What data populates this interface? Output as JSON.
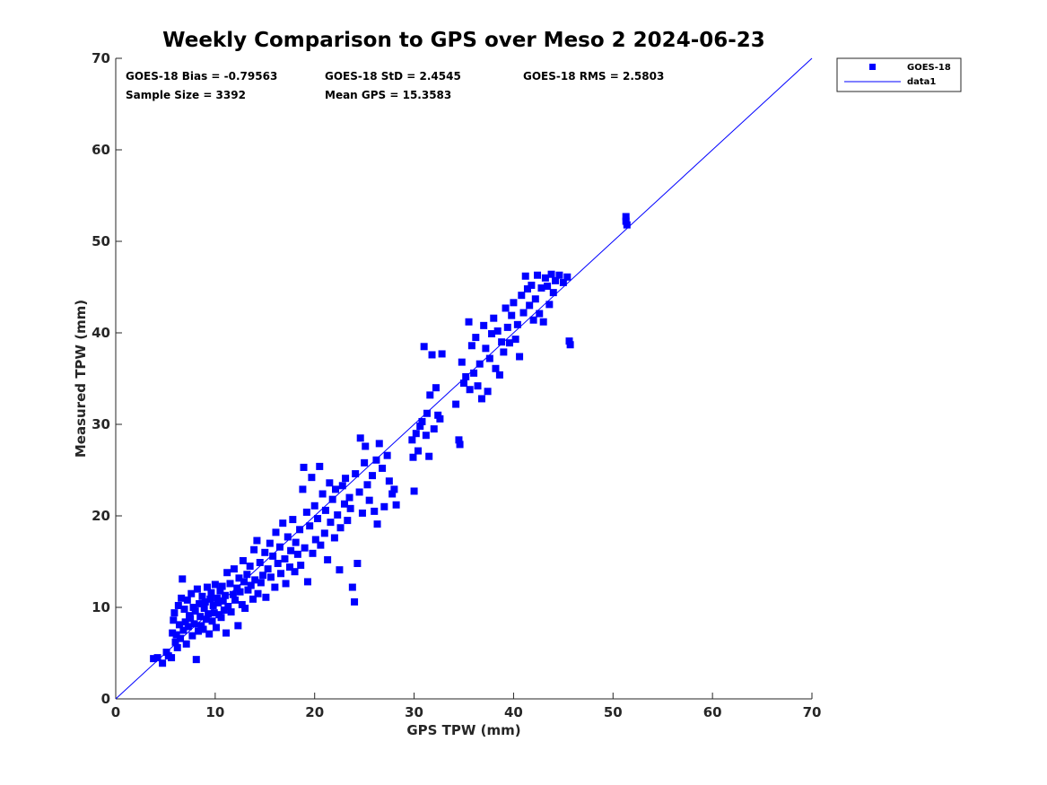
{
  "chart_data": {
    "type": "scatter",
    "title": "Weekly Comparison to GPS over Meso 2 2024-06-23",
    "xlabel": "GPS TPW (mm)",
    "ylabel": "Measured TPW (mm)",
    "xlim": [
      0,
      70
    ],
    "ylim": [
      0,
      70
    ],
    "xticks": [
      "0",
      "10",
      "20",
      "30",
      "40",
      "50",
      "60",
      "70"
    ],
    "yticks": [
      "0",
      "10",
      "20",
      "30",
      "40",
      "50",
      "60",
      "70"
    ],
    "grid": false,
    "legend_position": "outside-top-right",
    "stats": {
      "bias": "GOES-18 Bias = -0.79563",
      "std": "GOES-18 StD = 2.4545",
      "rms": "GOES-18 RMS = 2.5803",
      "sample_size": "Sample Size = 3392",
      "mean_gps": "Mean GPS = 15.3583"
    },
    "series": [
      {
        "name": "GOES-18",
        "kind": "scatter",
        "marker": "square",
        "color": "#0000ff",
        "points": [
          [
            3.8,
            4.4
          ],
          [
            4.2,
            4.5
          ],
          [
            4.7,
            3.9
          ],
          [
            5.1,
            5.1
          ],
          [
            5.3,
            4.7
          ],
          [
            5.6,
            4.5
          ],
          [
            5.7,
            7.2
          ],
          [
            5.8,
            8.6
          ],
          [
            5.9,
            9.4
          ],
          [
            6.0,
            6.2
          ],
          [
            6.1,
            7.0
          ],
          [
            6.2,
            5.6
          ],
          [
            6.3,
            10.2
          ],
          [
            6.4,
            8.1
          ],
          [
            6.5,
            6.6
          ],
          [
            6.6,
            11.0
          ],
          [
            6.7,
            13.1
          ],
          [
            6.8,
            7.5
          ],
          [
            6.9,
            9.8
          ],
          [
            7.0,
            8.4
          ],
          [
            7.1,
            6.0
          ],
          [
            7.2,
            10.8
          ],
          [
            7.3,
            7.9
          ],
          [
            7.4,
            9.1
          ],
          [
            7.5,
            8.8
          ],
          [
            7.6,
            11.5
          ],
          [
            7.7,
            6.9
          ],
          [
            7.8,
            10.0
          ],
          [
            7.9,
            8.2
          ],
          [
            8.0,
            9.6
          ],
          [
            8.1,
            4.3
          ],
          [
            8.2,
            12.0
          ],
          [
            8.3,
            7.4
          ],
          [
            8.4,
            10.4
          ],
          [
            8.5,
            9.0
          ],
          [
            8.6,
            8.0
          ],
          [
            8.7,
            11.2
          ],
          [
            8.8,
            7.6
          ],
          [
            8.9,
            9.9
          ],
          [
            9.0,
            10.6
          ],
          [
            9.1,
            8.7
          ],
          [
            9.2,
            12.2
          ],
          [
            9.3,
            9.3
          ],
          [
            9.4,
            7.1
          ],
          [
            9.5,
            10.9
          ],
          [
            9.6,
            11.6
          ],
          [
            9.7,
            8.5
          ],
          [
            9.8,
            10.2
          ],
          [
            9.9,
            9.4
          ],
          [
            10.0,
            12.5
          ],
          [
            10.1,
            7.8
          ],
          [
            10.2,
            11.0
          ],
          [
            10.3,
            10.5
          ],
          [
            10.4,
            9.2
          ],
          [
            10.5,
            11.8
          ],
          [
            10.6,
            8.9
          ],
          [
            10.7,
            12.3
          ],
          [
            10.8,
            10.7
          ],
          [
            10.9,
            9.7
          ],
          [
            11.0,
            11.3
          ],
          [
            11.1,
            7.2
          ],
          [
            11.2,
            13.8
          ],
          [
            11.3,
            10.1
          ],
          [
            11.5,
            12.6
          ],
          [
            11.6,
            9.5
          ],
          [
            11.8,
            11.4
          ],
          [
            11.9,
            14.2
          ],
          [
            12.0,
            10.8
          ],
          [
            12.2,
            12.1
          ],
          [
            12.3,
            8.0
          ],
          [
            12.4,
            13.2
          ],
          [
            12.5,
            11.7
          ],
          [
            12.7,
            10.3
          ],
          [
            12.8,
            15.1
          ],
          [
            12.9,
            12.8
          ],
          [
            13.0,
            9.9
          ],
          [
            13.2,
            13.6
          ],
          [
            13.3,
            11.9
          ],
          [
            13.5,
            14.5
          ],
          [
            13.6,
            12.4
          ],
          [
            13.8,
            10.9
          ],
          [
            13.9,
            16.3
          ],
          [
            14.0,
            13.0
          ],
          [
            14.2,
            17.3
          ],
          [
            14.3,
            11.5
          ],
          [
            14.5,
            14.9
          ],
          [
            14.6,
            12.7
          ],
          [
            14.8,
            13.5
          ],
          [
            15.0,
            16.0
          ],
          [
            15.1,
            11.1
          ],
          [
            15.3,
            14.2
          ],
          [
            15.5,
            17.0
          ],
          [
            15.6,
            13.3
          ],
          [
            15.8,
            15.6
          ],
          [
            16.0,
            12.2
          ],
          [
            16.1,
            18.2
          ],
          [
            16.3,
            14.8
          ],
          [
            16.5,
            16.6
          ],
          [
            16.6,
            13.7
          ],
          [
            16.8,
            19.2
          ],
          [
            17.0,
            15.3
          ],
          [
            17.1,
            12.6
          ],
          [
            17.3,
            17.7
          ],
          [
            17.5,
            14.4
          ],
          [
            17.6,
            16.2
          ],
          [
            17.8,
            19.6
          ],
          [
            18.0,
            13.9
          ],
          [
            18.1,
            17.1
          ],
          [
            18.3,
            15.8
          ],
          [
            18.5,
            18.5
          ],
          [
            18.6,
            14.6
          ],
          [
            18.8,
            22.9
          ],
          [
            18.9,
            25.3
          ],
          [
            19.0,
            16.5
          ],
          [
            19.2,
            20.4
          ],
          [
            19.3,
            12.8
          ],
          [
            19.5,
            18.9
          ],
          [
            19.7,
            24.2
          ],
          [
            19.8,
            15.9
          ],
          [
            20.0,
            21.1
          ],
          [
            20.1,
            17.4
          ],
          [
            20.3,
            19.7
          ],
          [
            20.5,
            25.4
          ],
          [
            20.6,
            16.8
          ],
          [
            20.8,
            22.4
          ],
          [
            21.0,
            18.1
          ],
          [
            21.1,
            20.6
          ],
          [
            21.3,
            15.2
          ],
          [
            21.5,
            23.6
          ],
          [
            21.6,
            19.3
          ],
          [
            21.8,
            21.8
          ],
          [
            22.0,
            17.6
          ],
          [
            22.1,
            22.9
          ],
          [
            22.3,
            20.1
          ],
          [
            22.5,
            14.1
          ],
          [
            22.6,
            18.7
          ],
          [
            22.8,
            23.3
          ],
          [
            23.0,
            21.3
          ],
          [
            23.1,
            24.1
          ],
          [
            23.3,
            19.5
          ],
          [
            23.5,
            22.0
          ],
          [
            23.6,
            20.8
          ],
          [
            23.8,
            12.2
          ],
          [
            24.0,
            10.6
          ],
          [
            24.1,
            24.6
          ],
          [
            24.3,
            14.8
          ],
          [
            24.5,
            22.6
          ],
          [
            24.6,
            28.5
          ],
          [
            24.8,
            20.3
          ],
          [
            25.0,
            25.8
          ],
          [
            25.1,
            27.6
          ],
          [
            25.3,
            23.4
          ],
          [
            25.5,
            21.7
          ],
          [
            25.8,
            24.4
          ],
          [
            26.0,
            20.5
          ],
          [
            26.2,
            26.1
          ],
          [
            26.3,
            19.1
          ],
          [
            26.5,
            27.9
          ],
          [
            26.8,
            25.2
          ],
          [
            27.0,
            21.0
          ],
          [
            27.3,
            26.6
          ],
          [
            27.5,
            23.8
          ],
          [
            27.8,
            22.4
          ],
          [
            28.0,
            22.9
          ],
          [
            28.2,
            21.2
          ],
          [
            29.8,
            28.3
          ],
          [
            29.9,
            26.4
          ],
          [
            30.0,
            22.7
          ],
          [
            30.2,
            29.0
          ],
          [
            30.4,
            27.1
          ],
          [
            30.6,
            29.8
          ],
          [
            30.8,
            30.3
          ],
          [
            31.0,
            38.5
          ],
          [
            31.2,
            28.8
          ],
          [
            31.3,
            31.2
          ],
          [
            31.5,
            26.5
          ],
          [
            31.6,
            33.2
          ],
          [
            31.8,
            37.6
          ],
          [
            32.0,
            29.5
          ],
          [
            32.2,
            34.0
          ],
          [
            32.4,
            31.0
          ],
          [
            32.6,
            30.6
          ],
          [
            32.8,
            37.7
          ],
          [
            34.2,
            32.2
          ],
          [
            34.5,
            28.3
          ],
          [
            34.6,
            27.8
          ],
          [
            34.8,
            36.8
          ],
          [
            35.0,
            34.5
          ],
          [
            35.2,
            35.2
          ],
          [
            35.5,
            41.2
          ],
          [
            35.6,
            33.8
          ],
          [
            35.8,
            38.6
          ],
          [
            36.0,
            35.6
          ],
          [
            36.2,
            39.5
          ],
          [
            36.4,
            34.2
          ],
          [
            36.6,
            36.6
          ],
          [
            36.8,
            32.8
          ],
          [
            37.0,
            40.8
          ],
          [
            37.2,
            38.3
          ],
          [
            37.4,
            33.6
          ],
          [
            37.6,
            37.2
          ],
          [
            37.8,
            39.9
          ],
          [
            38.0,
            41.6
          ],
          [
            38.2,
            36.1
          ],
          [
            38.4,
            40.2
          ],
          [
            38.6,
            35.4
          ],
          [
            38.8,
            39.0
          ],
          [
            39.0,
            37.9
          ],
          [
            39.2,
            42.7
          ],
          [
            39.4,
            40.6
          ],
          [
            39.6,
            38.9
          ],
          [
            39.8,
            41.9
          ],
          [
            40.0,
            43.3
          ],
          [
            40.2,
            39.3
          ],
          [
            40.4,
            40.9
          ],
          [
            40.6,
            37.4
          ],
          [
            40.8,
            44.1
          ],
          [
            41.0,
            42.2
          ],
          [
            41.2,
            46.2
          ],
          [
            41.4,
            44.8
          ],
          [
            41.6,
            43.0
          ],
          [
            41.8,
            45.2
          ],
          [
            42.0,
            41.4
          ],
          [
            42.2,
            43.7
          ],
          [
            42.4,
            46.3
          ],
          [
            42.6,
            42.1
          ],
          [
            42.8,
            44.9
          ],
          [
            43.0,
            41.2
          ],
          [
            43.2,
            46.0
          ],
          [
            43.4,
            45.1
          ],
          [
            43.6,
            43.1
          ],
          [
            43.8,
            46.4
          ],
          [
            44.0,
            44.4
          ],
          [
            44.2,
            45.7
          ],
          [
            44.6,
            46.3
          ],
          [
            45.0,
            45.5
          ],
          [
            45.4,
            46.1
          ],
          [
            45.6,
            39.1
          ],
          [
            45.7,
            38.7
          ],
          [
            51.3,
            52.7
          ],
          [
            51.3,
            52.2
          ],
          [
            51.4,
            51.8
          ]
        ]
      },
      {
        "name": "data1",
        "kind": "line",
        "color": "#0000ff",
        "points": [
          [
            0,
            0
          ],
          [
            70,
            70
          ]
        ]
      }
    ]
  }
}
